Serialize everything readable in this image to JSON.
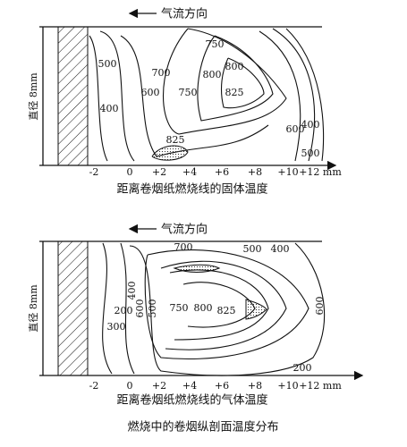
{
  "top": {
    "flow": "气流方向",
    "diameter": "直径 8mm",
    "x_labels": [
      "-2",
      "0",
      "+2",
      "+4",
      "+6",
      "+8",
      "+10",
      "+12 mm"
    ],
    "contour_labels": [
      "500",
      "400",
      "700",
      "600",
      "750",
      "800",
      "825",
      "750",
      "800",
      "825",
      "600",
      "400",
      "500"
    ],
    "caption": "距离卷烟纸燃烧线的固体温度"
  },
  "bottom": {
    "flow": "气流方向",
    "diameter": "直径 8mm",
    "x_labels": [
      "-2",
      "0",
      "+2",
      "+4",
      "+6",
      "+8",
      "+10",
      "+12 mm"
    ],
    "contour_labels": [
      "700",
      "500",
      "400",
      "200",
      "300",
      "400",
      "600",
      "500",
      "750",
      "800",
      "825",
      "600",
      "200"
    ],
    "caption": "距离卷烟纸燃烧线的气体温度"
  },
  "title": "燃烧中的卷烟纵剖面温度分布"
}
